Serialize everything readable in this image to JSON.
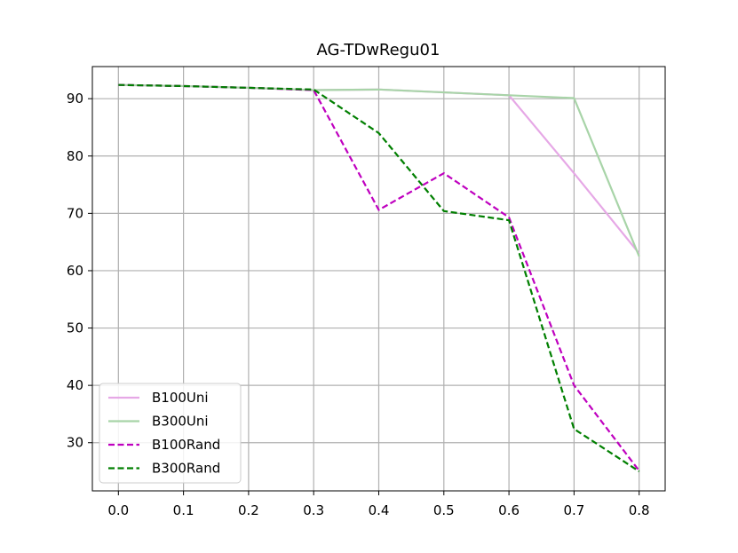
{
  "chart_data": {
    "type": "line",
    "title": "AG-TDwRegu01",
    "xlabel": "",
    "ylabel": "",
    "x": [
      0.0,
      0.1,
      0.2,
      0.3,
      0.4,
      0.5,
      0.6,
      0.7,
      0.8
    ],
    "x_tick_labels": [
      "0.0",
      "0.1",
      "0.2",
      "0.3",
      "0.4",
      "0.5",
      "0.6",
      "0.7",
      "0.8"
    ],
    "y_ticks": [
      30,
      40,
      50,
      60,
      70,
      80,
      90
    ],
    "y_tick_labels": [
      "30",
      "40",
      "50",
      "60",
      "70",
      "80",
      "90"
    ],
    "xlim": [
      -0.04,
      0.84
    ],
    "ylim": [
      21.6,
      95.6
    ],
    "grid": true,
    "legend_position": "lower-left",
    "series": [
      {
        "name": "B100Uni",
        "values": [
          92.4,
          92.2,
          91.9,
          91.5,
          91.6,
          91.1,
          90.6,
          77.0,
          63.0
        ],
        "color": "#e6a8e6",
        "style": "solid"
      },
      {
        "name": "B300Uni",
        "values": [
          92.4,
          92.2,
          91.9,
          91.5,
          91.6,
          91.1,
          90.6,
          90.1,
          62.5
        ],
        "color": "#a8d4a8",
        "style": "solid"
      },
      {
        "name": "B100Rand",
        "values": [
          92.4,
          92.2,
          91.9,
          91.5,
          70.6,
          77.0,
          69.3,
          40.0,
          25.1
        ],
        "color": "#bf00bf",
        "style": "dashed"
      },
      {
        "name": "B300Rand",
        "values": [
          92.4,
          92.2,
          91.9,
          91.6,
          84.0,
          70.4,
          68.8,
          32.4,
          25.0
        ],
        "color": "#007f00",
        "style": "dashed"
      }
    ]
  }
}
